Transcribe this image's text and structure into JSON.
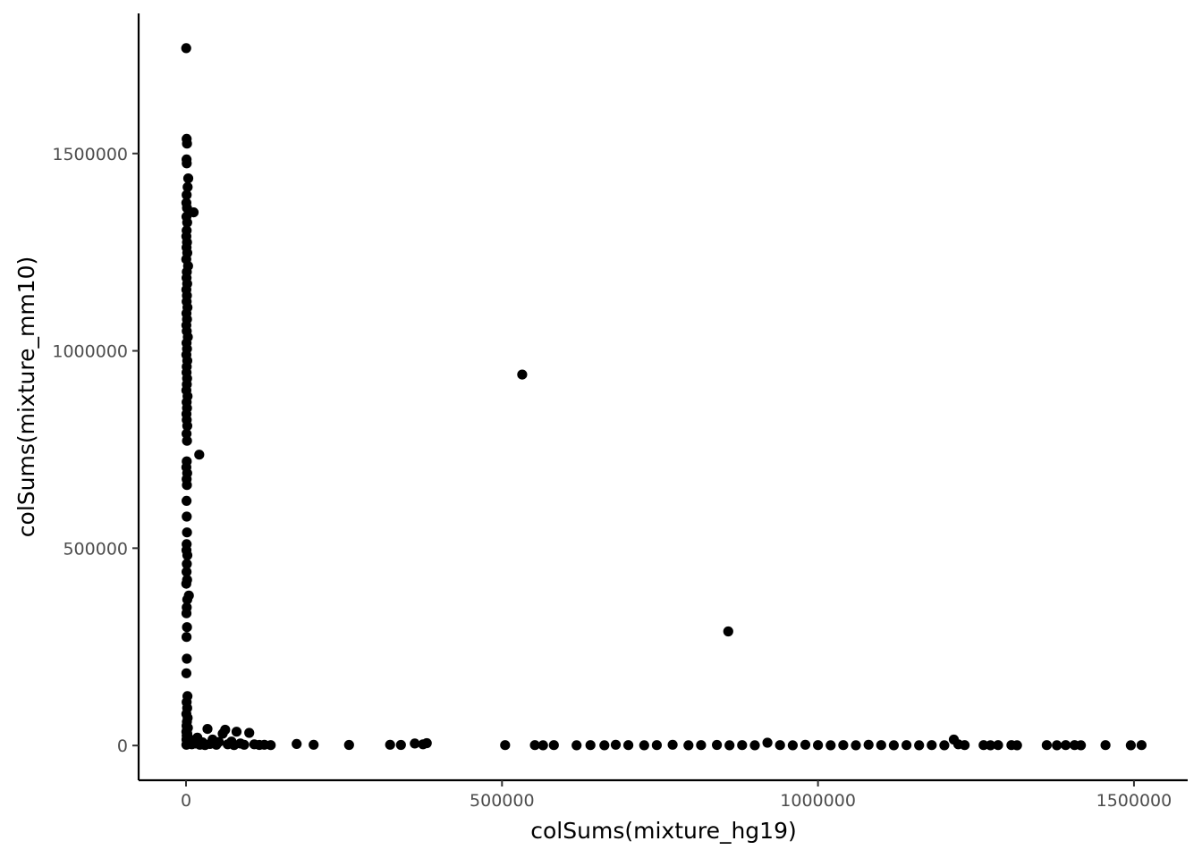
{
  "chart_data": {
    "type": "scatter",
    "title": "",
    "xlabel": "colSums(mixture_hg19)",
    "ylabel": "colSums(mixture_mm10)",
    "xlim": [
      -75000,
      1585000
    ],
    "ylim": [
      -88000,
      1855000
    ],
    "xticks": [
      0,
      500000,
      1000000,
      1500000
    ],
    "xtick_labels": [
      "0",
      "500000",
      "1000000",
      "1500000"
    ],
    "yticks": [
      0,
      500000,
      1000000,
      1500000
    ],
    "ytick_labels": [
      "0",
      "500000",
      "1000000",
      "1500000"
    ],
    "grid": false,
    "legend": "none",
    "point_color": "#000000",
    "points": [
      [
        300,
        1767000
      ],
      [
        1000,
        1537000
      ],
      [
        1500,
        1525000
      ],
      [
        800,
        1485000
      ],
      [
        1200,
        1475000
      ],
      [
        3500,
        1437000
      ],
      [
        2500,
        1415000
      ],
      [
        1000,
        1395000
      ],
      [
        500,
        1375000
      ],
      [
        1500,
        1362000
      ],
      [
        12000,
        1351000
      ],
      [
        700,
        1340000
      ],
      [
        1800,
        1325000
      ],
      [
        1000,
        1305000
      ],
      [
        600,
        1290000
      ],
      [
        1500,
        1275000
      ],
      [
        900,
        1262000
      ],
      [
        2000,
        1248000
      ],
      [
        400,
        1232000
      ],
      [
        3200,
        1215000
      ],
      [
        1300,
        1200000
      ],
      [
        800,
        1185000
      ],
      [
        1900,
        1170000
      ],
      [
        600,
        1155000
      ],
      [
        1400,
        1140000
      ],
      [
        1000,
        1125000
      ],
      [
        2200,
        1110000
      ],
      [
        700,
        1095000
      ],
      [
        1600,
        1080000
      ],
      [
        500,
        1065000
      ],
      [
        1200,
        1050000
      ],
      [
        2800,
        1035000
      ],
      [
        900,
        1020000
      ],
      [
        1500,
        1005000
      ],
      [
        600,
        990000
      ],
      [
        2000,
        975000
      ],
      [
        1100,
        960000
      ],
      [
        800,
        945000
      ],
      [
        1700,
        930000
      ],
      [
        1300,
        915000
      ],
      [
        500,
        900000
      ],
      [
        2400,
        885000
      ],
      [
        1000,
        870000
      ],
      [
        1600,
        855000
      ],
      [
        700,
        840000
      ],
      [
        1200,
        825000
      ],
      [
        2000,
        810000
      ],
      [
        900,
        790000
      ],
      [
        1500,
        772000
      ],
      [
        21000,
        737000
      ],
      [
        1100,
        720000
      ],
      [
        600,
        705000
      ],
      [
        1800,
        690000
      ],
      [
        1000,
        675000
      ],
      [
        1400,
        660000
      ],
      [
        800,
        620000
      ],
      [
        1200,
        580000
      ],
      [
        1600,
        540000
      ],
      [
        1000,
        510000
      ],
      [
        700,
        495000
      ],
      [
        2100,
        482000
      ],
      [
        1300,
        460000
      ],
      [
        900,
        440000
      ],
      [
        1700,
        420000
      ],
      [
        400,
        410000
      ],
      [
        4500,
        380000
      ],
      [
        2000,
        370000
      ],
      [
        1200,
        350000
      ],
      [
        700,
        335000
      ],
      [
        1600,
        300000
      ],
      [
        900,
        275000
      ],
      [
        1300,
        220000
      ],
      [
        600,
        183000
      ],
      [
        2200,
        125000
      ],
      [
        1000,
        110000
      ],
      [
        1800,
        95000
      ],
      [
        500,
        80000
      ],
      [
        2500,
        70000
      ],
      [
        1400,
        60000
      ],
      [
        800,
        50000
      ],
      [
        3000,
        45000
      ],
      [
        1500,
        40000
      ],
      [
        500,
        35000
      ],
      [
        2000,
        30000
      ],
      [
        1000,
        25000
      ],
      [
        3500,
        20000
      ],
      [
        700,
        15000
      ],
      [
        2500,
        10000
      ],
      [
        1500,
        5000
      ],
      [
        500,
        2000
      ],
      [
        6000,
        8000
      ],
      [
        9000,
        3000
      ],
      [
        12000,
        12000
      ],
      [
        15000,
        5000
      ],
      [
        18000,
        20000
      ],
      [
        22000,
        2000
      ],
      [
        26000,
        8000
      ],
      [
        30000,
        1000
      ],
      [
        34000,
        42000
      ],
      [
        38000,
        4000
      ],
      [
        42000,
        15000
      ],
      [
        48000,
        2000
      ],
      [
        52000,
        9000
      ],
      [
        58000,
        30000
      ],
      [
        62000,
        40000
      ],
      [
        66000,
        3000
      ],
      [
        72000,
        10000
      ],
      [
        76000,
        1000
      ],
      [
        80000,
        35000
      ],
      [
        86000,
        5000
      ],
      [
        92000,
        2000
      ],
      [
        100000,
        32000
      ],
      [
        108000,
        3000
      ],
      [
        116000,
        1500
      ],
      [
        124000,
        2000
      ],
      [
        134000,
        1000
      ],
      [
        175000,
        4000
      ],
      [
        202000,
        2000
      ],
      [
        258000,
        1500
      ],
      [
        323000,
        2000
      ],
      [
        340000,
        1500
      ],
      [
        362000,
        5000
      ],
      [
        375000,
        3000
      ],
      [
        381000,
        6000
      ],
      [
        505000,
        1000
      ],
      [
        552000,
        1000
      ],
      [
        565000,
        500
      ],
      [
        582000,
        1000
      ],
      [
        618000,
        500
      ],
      [
        640000,
        1000
      ],
      [
        662000,
        500
      ],
      [
        680000,
        2000
      ],
      [
        700000,
        1000
      ],
      [
        725000,
        500
      ],
      [
        745000,
        1000
      ],
      [
        770000,
        2000
      ],
      [
        795000,
        500
      ],
      [
        815000,
        1000
      ],
      [
        840000,
        1500
      ],
      [
        860000,
        500
      ],
      [
        880000,
        1000
      ],
      [
        900000,
        500
      ],
      [
        920000,
        7000
      ],
      [
        940000,
        1000
      ],
      [
        960000,
        500
      ],
      [
        980000,
        2000
      ],
      [
        1000000,
        1000
      ],
      [
        1020000,
        500
      ],
      [
        1040000,
        1000
      ],
      [
        1060000,
        500
      ],
      [
        1080000,
        2000
      ],
      [
        1100000,
        1000
      ],
      [
        1120000,
        500
      ],
      [
        1140000,
        1000
      ],
      [
        1160000,
        500
      ],
      [
        1180000,
        1000
      ],
      [
        1200000,
        500
      ],
      [
        1215000,
        15000
      ],
      [
        1222000,
        3000
      ],
      [
        1232000,
        1000
      ],
      [
        1262000,
        1000
      ],
      [
        1273000,
        500
      ],
      [
        1285000,
        1000
      ],
      [
        1306000,
        1000
      ],
      [
        1315000,
        500
      ],
      [
        1362000,
        1000
      ],
      [
        1378000,
        500
      ],
      [
        1392000,
        1000
      ],
      [
        1406000,
        1000
      ],
      [
        1416000,
        500
      ],
      [
        1455000,
        1000
      ],
      [
        1495000,
        500
      ],
      [
        1512000,
        1000
      ],
      [
        532000,
        940000
      ],
      [
        858000,
        289000
      ]
    ]
  }
}
